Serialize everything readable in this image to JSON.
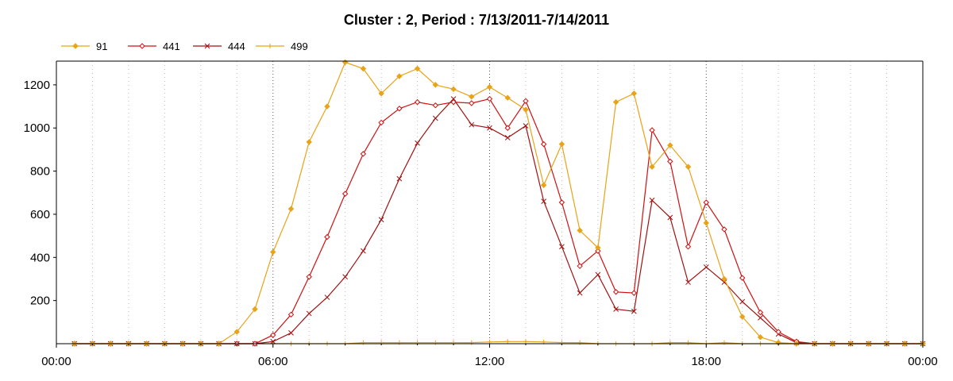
{
  "chart_data": {
    "type": "line",
    "title": "Cluster : 2, Period : 7/13/2011-7/14/2011",
    "xlabel": "",
    "ylabel": "",
    "x_ticks": [
      "00:00",
      "06:00",
      "12:00",
      "18:00",
      "00:00"
    ],
    "y_ticks": [
      200,
      400,
      600,
      800,
      1000,
      1200
    ],
    "xlim_hours": [
      0,
      24
    ],
    "ylim": [
      0,
      1310
    ],
    "grid": true,
    "legend_position": "top-left",
    "colors": {
      "s91": "#e8a317",
      "s441": "#d01010",
      "s444": "#a01010",
      "s499": "#e8a317"
    },
    "x_hours": [
      0.5,
      1,
      1.5,
      2,
      2.5,
      3,
      3.5,
      4,
      4.5,
      5,
      5.5,
      6,
      6.5,
      7,
      7.5,
      8,
      8.5,
      9,
      9.5,
      10,
      10.5,
      11,
      11.5,
      12,
      12.5,
      13,
      13.5,
      14,
      14.5,
      15,
      15.5,
      16,
      16.5,
      17,
      17.5,
      18,
      18.5,
      19,
      19.5,
      20,
      20.5,
      21,
      21.5,
      22,
      22.5,
      23,
      23.5,
      24
    ],
    "series": [
      {
        "name": "91",
        "marker": "diamond",
        "values": [
          0,
          0,
          0,
          0,
          0,
          0,
          0,
          0,
          0,
          55,
          160,
          425,
          625,
          935,
          1100,
          1305,
          1275,
          1160,
          1240,
          1275,
          1200,
          1180,
          1145,
          1190,
          1140,
          1085,
          735,
          925,
          525,
          445,
          1120,
          1160,
          820,
          920,
          820,
          560,
          300,
          125,
          30,
          5,
          0,
          0,
          0,
          0,
          0,
          0,
          0,
          0
        ]
      },
      {
        "name": "441",
        "marker": "diamond-open",
        "values": [
          0,
          0,
          0,
          0,
          0,
          0,
          0,
          0,
          0,
          0,
          0,
          40,
          135,
          310,
          495,
          695,
          880,
          1025,
          1090,
          1120,
          1105,
          1120,
          1115,
          1135,
          1000,
          1125,
          925,
          655,
          360,
          430,
          240,
          235,
          990,
          845,
          450,
          655,
          530,
          305,
          145,
          55,
          10,
          0,
          0,
          0,
          0,
          0,
          0,
          0
        ]
      },
      {
        "name": "444",
        "marker": "x",
        "values": [
          0,
          0,
          0,
          0,
          0,
          0,
          0,
          0,
          0,
          0,
          0,
          10,
          50,
          140,
          215,
          310,
          430,
          575,
          765,
          930,
          1045,
          1135,
          1015,
          1000,
          955,
          1010,
          660,
          450,
          235,
          320,
          160,
          150,
          665,
          585,
          285,
          355,
          285,
          195,
          120,
          45,
          5,
          0,
          0,
          0,
          0,
          0,
          0,
          0
        ]
      },
      {
        "name": "499",
        "marker": "plus",
        "values": [
          0,
          0,
          0,
          0,
          0,
          0,
          0,
          0,
          0,
          0,
          0,
          0,
          0,
          0,
          0,
          0,
          5,
          5,
          5,
          5,
          5,
          5,
          5,
          8,
          10,
          10,
          8,
          5,
          5,
          0,
          0,
          0,
          0,
          5,
          5,
          0,
          5,
          0,
          0,
          0,
          0,
          0,
          0,
          0,
          0,
          0,
          0,
          0
        ]
      }
    ]
  }
}
